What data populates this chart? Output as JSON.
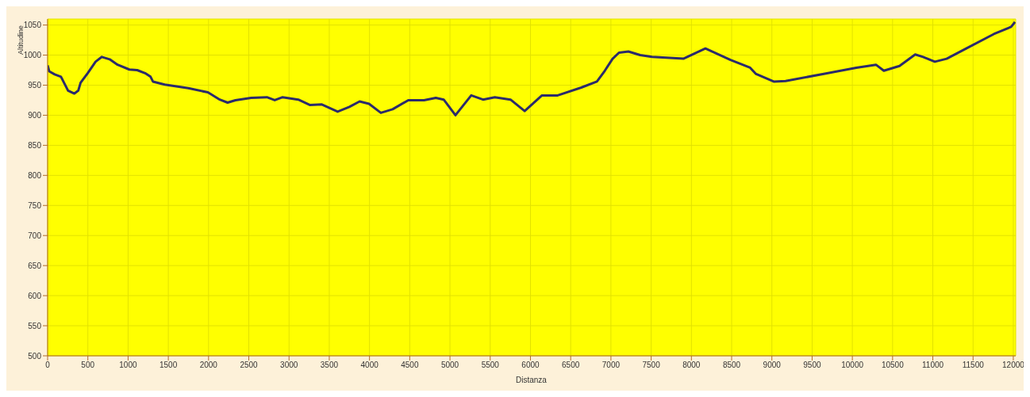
{
  "chart_data": {
    "type": "line",
    "xlabel": "Distanza",
    "ylabel": "Altitudine",
    "x": [
      0,
      20,
      88,
      166,
      254,
      332,
      381,
      410,
      498,
      596,
      674,
      771,
      869,
      1016,
      1113,
      1211,
      1279,
      1309,
      1455,
      1748,
      1992,
      2139,
      2236,
      2334,
      2529,
      2725,
      2822,
      2920,
      3115,
      3262,
      3408,
      3604,
      3750,
      3877,
      3994,
      4141,
      4287,
      4482,
      4678,
      4824,
      4922,
      5068,
      5264,
      5410,
      5557,
      5752,
      5928,
      6143,
      6338,
      6631,
      6826,
      6924,
      7021,
      7100,
      7217,
      7363,
      7510,
      7900,
      8174,
      8486,
      8730,
      8799,
      9023,
      9170,
      9658,
      10049,
      10293,
      10391,
      10586,
      10781,
      10879,
      11025,
      11172,
      11416,
      11758,
      11973,
      12021
    ],
    "series": [
      {
        "color": "#2b2b6b",
        "values": [
          983,
          973,
          968,
          964,
          941,
          936,
          941,
          954,
          970,
          989,
          997,
          993,
          984,
          976,
          975,
          970,
          964,
          956,
          951,
          945,
          938,
          926,
          921,
          925,
          929,
          930,
          925,
          930,
          926,
          917,
          918,
          906,
          914,
          923,
          919,
          904,
          910,
          925,
          925,
          929,
          926,
          900,
          933,
          926,
          930,
          926,
          907,
          933,
          933,
          946,
          956,
          974,
          994,
          1004,
          1006,
          1000,
          997,
          994,
          1011,
          992,
          979,
          969,
          956,
          957,
          969,
          979,
          984,
          974,
          982,
          1001,
          997,
          989,
          994,
          1011,
          1035,
          1047,
          1055
        ]
      }
    ],
    "xlim": [
      0,
      12030
    ],
    "xticks": [
      0,
      500,
      1000,
      1500,
      2000,
      2500,
      3000,
      3500,
      4000,
      4500,
      5000,
      5500,
      6000,
      6500,
      7000,
      7500,
      8000,
      8500,
      9000,
      9500,
      10000,
      10500,
      11000,
      11500,
      12000
    ],
    "ylim": [
      500,
      1060
    ],
    "yticks": [
      500,
      550,
      600,
      650,
      700,
      750,
      800,
      850,
      900,
      950,
      1000,
      1050
    ],
    "grid": true,
    "legend": false,
    "marker": "none",
    "line_style": "solid"
  }
}
